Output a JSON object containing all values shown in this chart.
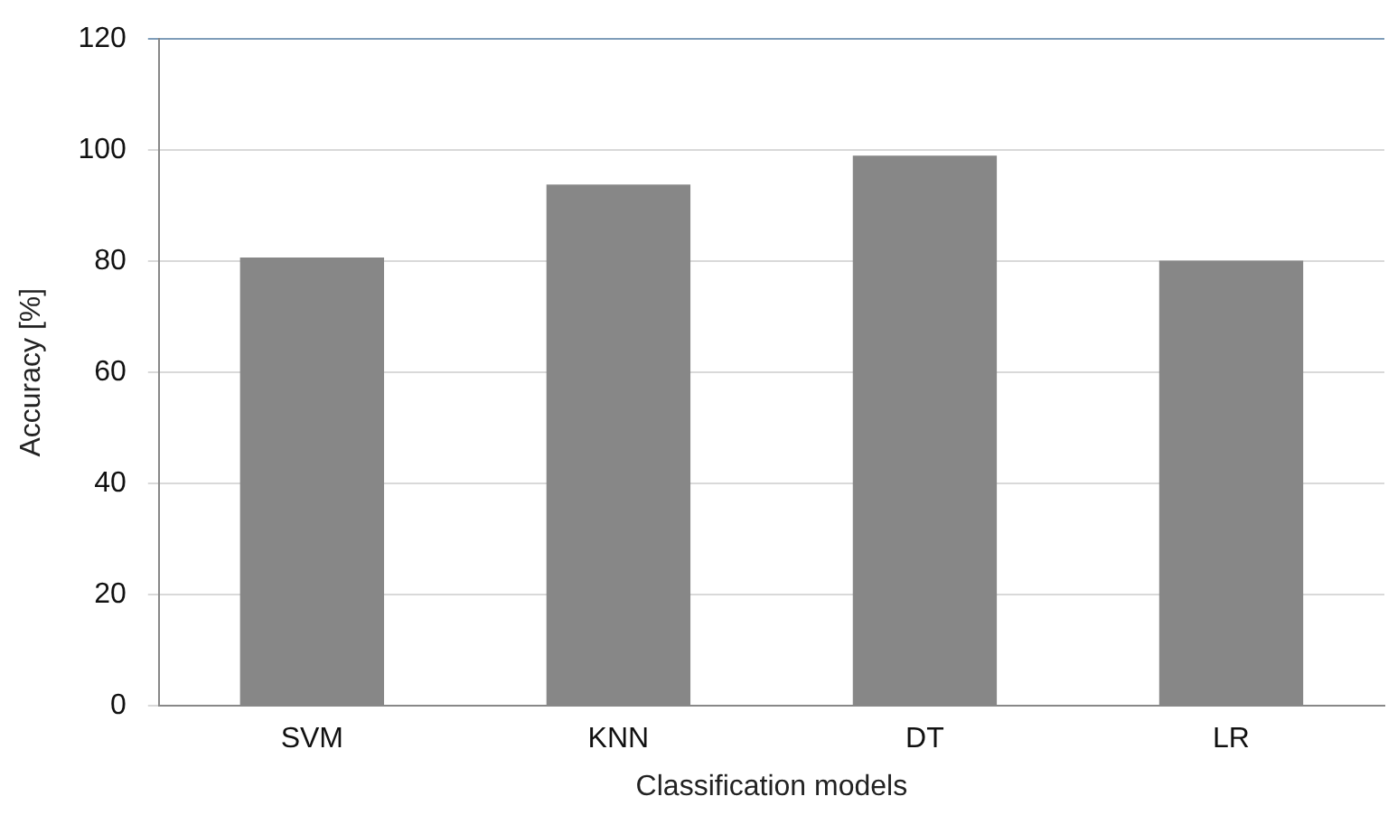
{
  "chart_data": {
    "type": "bar",
    "xlabel": "Classification models",
    "ylabel": "Accuracy [%]",
    "categories": [
      "SVM",
      "KNN",
      "DT",
      "LR"
    ],
    "values": [
      80.7,
      93.8,
      99,
      80.1
    ],
    "color": "#878787",
    "ylim": [
      0,
      120
    ],
    "yticks": [
      0,
      20,
      40,
      60,
      80,
      100,
      120
    ],
    "grid": "y",
    "legend": false
  }
}
